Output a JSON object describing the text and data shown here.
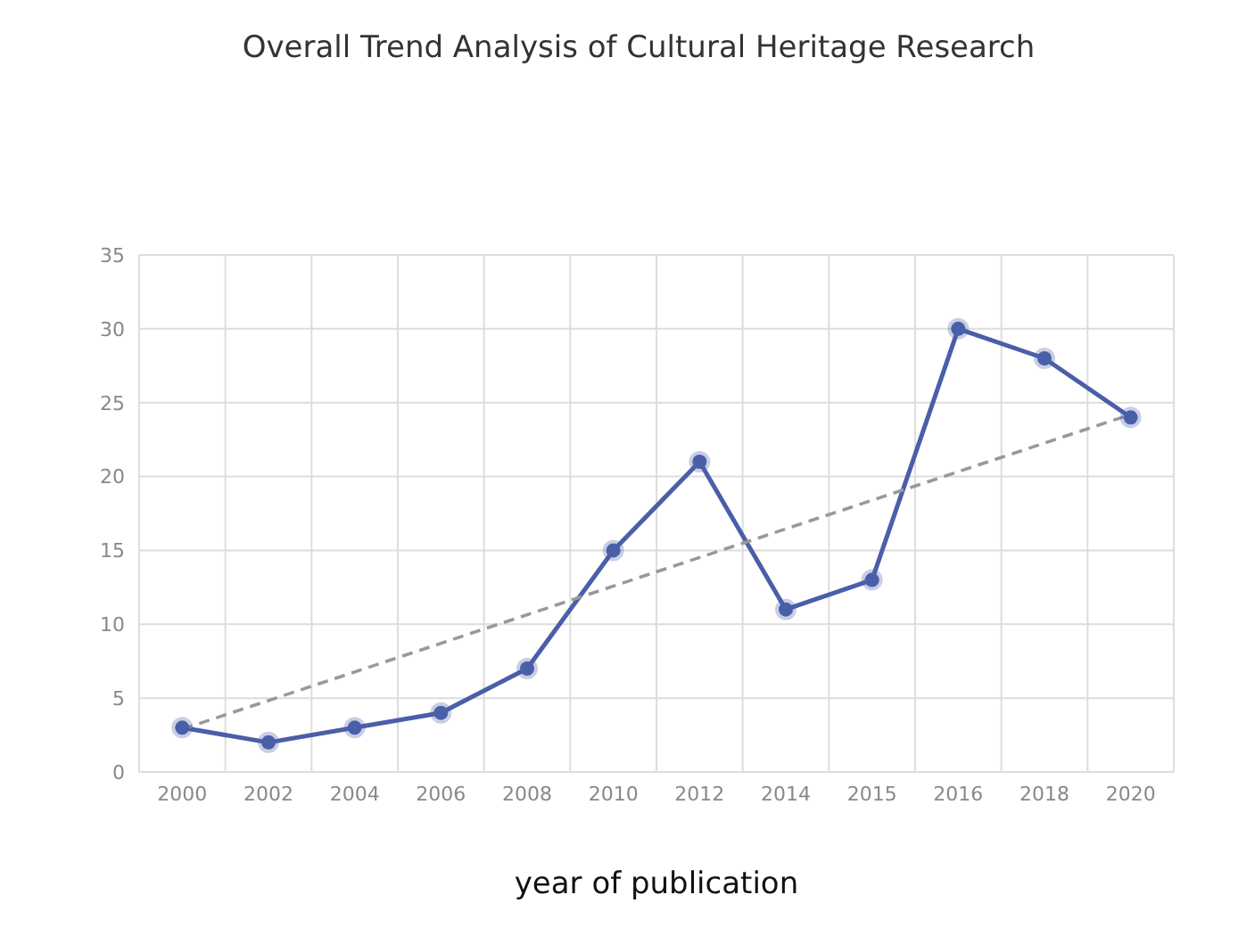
{
  "chart_data": {
    "type": "line",
    "title": "Overall Trend Analysis of Cultural Heritage Research",
    "xlabel": "year of publication",
    "categories": [
      "2000",
      "2002",
      "2004",
      "2006",
      "2008",
      "2010",
      "2012",
      "2014",
      "2015",
      "2016",
      "2018",
      "2020"
    ],
    "series": [
      {
        "color": "#4a5fa8",
        "marker": "circle",
        "line_style": "solid",
        "values": [
          3,
          2,
          3,
          4,
          7,
          15,
          21,
          11,
          13,
          30,
          28,
          24
        ]
      },
      {
        "color": "#999999",
        "marker": "none",
        "line_style": "dashed",
        "values": [
          2.9,
          null,
          null,
          null,
          null,
          null,
          null,
          null,
          null,
          null,
          null,
          24.2
        ]
      }
    ],
    "ylim": [
      0,
      35
    ],
    "yticks": [
      0,
      5,
      10,
      15,
      20,
      25,
      30,
      35
    ],
    "grid": true
  }
}
